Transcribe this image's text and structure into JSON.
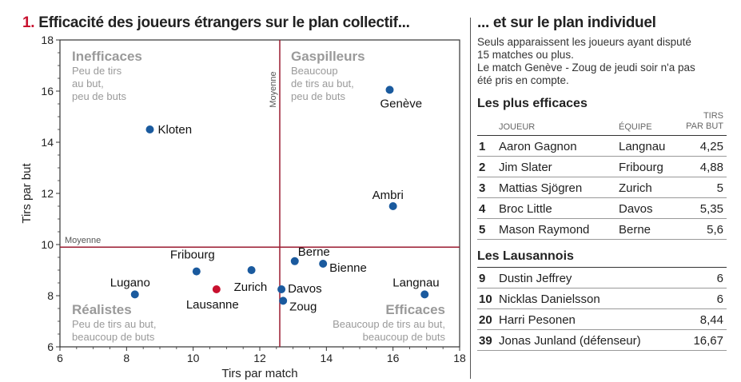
{
  "title": {
    "number": "1.",
    "text": "Efficacité des joueurs étrangers sur le plan collectif..."
  },
  "chart_data": {
    "type": "scatter",
    "xlabel": "Tirs par match",
    "ylabel": "Tirs par but",
    "xlim": [
      6,
      18
    ],
    "ylim": [
      6,
      18
    ],
    "xticks": [
      6,
      8,
      10,
      12,
      14,
      16,
      18
    ],
    "yticks": [
      6,
      8,
      10,
      12,
      14,
      16,
      18
    ],
    "mean_x": 12.6,
    "mean_y": 9.9,
    "mean_label": "Moyenne",
    "point_color": "#1a5a9e",
    "highlight_color": "#c8102e",
    "points": [
      {
        "label": "Kloten",
        "x": 8.7,
        "y": 14.5,
        "highlight": false
      },
      {
        "label": "Genève",
        "x": 15.9,
        "y": 16.05,
        "highlight": false
      },
      {
        "label": "Ambri",
        "x": 16.0,
        "y": 11.5,
        "highlight": false
      },
      {
        "label": "Fribourg",
        "x": 10.1,
        "y": 8.95,
        "highlight": false
      },
      {
        "label": "Zurich",
        "x": 11.75,
        "y": 9.0,
        "highlight": false
      },
      {
        "label": "Berne",
        "x": 13.05,
        "y": 9.35,
        "highlight": false
      },
      {
        "label": "Bienne",
        "x": 13.9,
        "y": 9.25,
        "highlight": false
      },
      {
        "label": "Davos",
        "x": 12.65,
        "y": 8.25,
        "highlight": false
      },
      {
        "label": "Zoug",
        "x": 12.7,
        "y": 7.8,
        "highlight": false
      },
      {
        "label": "Lugano",
        "x": 8.25,
        "y": 8.05,
        "highlight": false
      },
      {
        "label": "Lausanne",
        "x": 10.7,
        "y": 8.25,
        "highlight": true
      },
      {
        "label": "Langnau",
        "x": 16.95,
        "y": 8.05,
        "highlight": false
      }
    ],
    "quadrants": [
      {
        "title": "Inefficaces",
        "text": [
          "Peu de tirs",
          "au but,",
          "peu de buts"
        ]
      },
      {
        "title": "Gaspilleurs",
        "text": [
          "Beaucoup",
          "de tirs au but,",
          "peu de buts"
        ]
      },
      {
        "title": "Réalistes",
        "text": [
          "Peu de tirs au but,",
          "beaucoup de buts"
        ]
      },
      {
        "title": "Efficaces",
        "text": [
          "Beaucoup de tirs au but,",
          "beaucoup de buts"
        ]
      }
    ]
  },
  "side": {
    "title": "... et sur le plan individuel",
    "note": [
      "Seuls apparaissent les joueurs ayant disputé",
      "15 matches ou plus.",
      "Le match Genève - Zoug de jeudi soir n'a pas",
      "été pris en compte."
    ],
    "best_heading": "Les plus efficaces",
    "columns": {
      "player": "JOUEUR",
      "team": "ÉQUIPE",
      "shots_top": "TIRS",
      "shots_bottom": "PAR BUT"
    },
    "best": [
      {
        "rank": "1",
        "name": "Aaron Gagnon",
        "team": "Langnau",
        "value": "4,25"
      },
      {
        "rank": "2",
        "name": "Jim Slater",
        "team": "Fribourg",
        "value": "4,88"
      },
      {
        "rank": "3",
        "name": "Mattias Sjögren",
        "team": "Zurich",
        "value": "5"
      },
      {
        "rank": "4",
        "name": "Broc Little",
        "team": "Davos",
        "value": "5,35"
      },
      {
        "rank": "5",
        "name": "Mason Raymond",
        "team": "Berne",
        "value": "5,6"
      }
    ],
    "lausanne_heading": "Les Lausannois",
    "lausanne": [
      {
        "rank": "9",
        "name": "Dustin Jeffrey",
        "value": "6"
      },
      {
        "rank": "10",
        "name": "Nicklas Danielsson",
        "value": "6"
      },
      {
        "rank": "20",
        "name": "Harri Pesonen",
        "value": "8,44"
      },
      {
        "rank": "39",
        "name": "Jonas Junland (défenseur)",
        "value": "16,67"
      }
    ]
  }
}
